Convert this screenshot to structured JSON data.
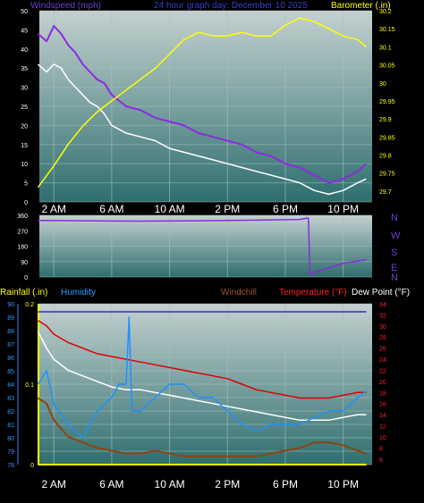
{
  "header": {
    "wind_label": "Windspeed (mph)",
    "subtitle": "24 hour graph day:  December 10 2025",
    "baro_label": "Barometer (.in)"
  },
  "bottom_header": {
    "rain_label": "Rainfall (.in)",
    "humidity_label": "Humidity",
    "windchill_label": "Windchill",
    "temp_label": "Temperature (°F)",
    "dew_label": "Dew Point (°F)"
  },
  "x_ticks": [
    "2 AM",
    "6 AM",
    "10 AM",
    "2 PM",
    "6 PM",
    "10 PM"
  ],
  "direction_labels": [
    "N",
    "W",
    "S",
    "E",
    "N"
  ],
  "colors": {
    "wind": "#8a2be2",
    "gust": "#8a2be2",
    "wind_avg": "#ffffff",
    "barometer": "#ffff00",
    "direction": "#8a2be2",
    "humidity": "#1e90ff",
    "windchill": "#ffffff",
    "temperature": "#dd0000",
    "dewpoint": "#8b4513",
    "rain_total": "#3333aa",
    "rain": "#ffff00"
  },
  "chart_data": [
    {
      "type": "line",
      "title": "24 hour graph day:  December 10 2025",
      "x_unit": "hour of day",
      "xlim": [
        1,
        24
      ],
      "x_ticks": [
        2,
        6,
        10,
        14,
        18,
        22
      ],
      "y_left_label": "Windspeed (mph)",
      "ylim_left": [
        0,
        50
      ],
      "y_left_ticks": [
        0,
        5,
        10,
        15,
        20,
        25,
        30,
        35,
        40,
        45,
        50
      ],
      "y_right_label": "Barometer (.in)",
      "ylim_right": [
        29.67,
        30.2
      ],
      "y_right_ticks": [
        "29.7",
        "29.75",
        "29.8",
        "29.85",
        "29.9",
        "29.95",
        "30",
        "30.05",
        "30.1",
        "30.15",
        "30.2"
      ],
      "series": [
        {
          "role": "gust",
          "axis": "left",
          "x": [
            0.9,
            1.5,
            2.0,
            2.5,
            3.0,
            3.5,
            4.0,
            4.5,
            5.0,
            5.5,
            6.0,
            7.0,
            8.0,
            9.0,
            10.0,
            11.0,
            12.0,
            13.0,
            14.0,
            15.0,
            16.0,
            17.0,
            18.0,
            19.0,
            20.0,
            21.0,
            22.0,
            23.0,
            23.6
          ],
          "values": [
            44,
            42,
            46,
            44,
            41,
            39,
            36,
            34,
            32,
            31,
            28,
            25,
            24,
            22,
            21,
            20,
            18,
            17,
            16,
            15,
            13,
            12,
            10,
            9,
            7,
            5,
            6,
            8,
            10
          ]
        },
        {
          "role": "wind",
          "axis": "left",
          "x": [
            0.9,
            1.5,
            2.0,
            2.5,
            3.0,
            3.5,
            4.0,
            4.5,
            5.0,
            5.5,
            6.0,
            7.0,
            8.0,
            9.0,
            10.0,
            11.0,
            12.0,
            13.0,
            14.0,
            15.0,
            16.0,
            17.0,
            18.0,
            19.0,
            20.0,
            21.0,
            22.0,
            23.0,
            23.6
          ],
          "values": [
            36,
            34,
            36,
            35,
            32,
            30,
            28,
            26,
            25,
            23,
            20,
            18,
            17,
            16,
            14,
            13,
            12,
            11,
            10,
            9,
            8,
            7,
            6,
            5,
            3,
            2,
            3,
            5,
            6
          ]
        },
        {
          "role": "barometer",
          "axis": "right",
          "x": [
            0.9,
            2.0,
            3.0,
            4.0,
            5.0,
            6.0,
            7.0,
            8.0,
            9.0,
            10.0,
            11.0,
            12.0,
            13.0,
            14.0,
            15.0,
            16.0,
            17.0,
            18.0,
            19.0,
            20.0,
            21.0,
            22.0,
            23.0,
            23.6
          ],
          "values": [
            29.71,
            29.77,
            29.83,
            29.88,
            29.92,
            29.95,
            29.98,
            30.01,
            30.04,
            30.08,
            30.12,
            30.14,
            30.13,
            30.13,
            30.14,
            30.13,
            30.13,
            30.16,
            30.18,
            30.17,
            30.15,
            30.13,
            30.12,
            30.1
          ]
        }
      ]
    },
    {
      "type": "line",
      "xlim": [
        1,
        24
      ],
      "ylim": [
        0,
        360
      ],
      "y_ticks": [
        0,
        90,
        180,
        270,
        360
      ],
      "series": [
        {
          "role": "direction",
          "x": [
            0.9,
            4.0,
            8.0,
            12.0,
            16.0,
            19.0,
            19.6,
            19.7,
            20.5,
            22.0,
            23.6
          ],
          "values": [
            330,
            328,
            326,
            328,
            332,
            336,
            345,
            15,
            40,
            80,
            100
          ]
        }
      ]
    },
    {
      "type": "line",
      "xlim": [
        1,
        24
      ],
      "y_humidity_label": "Humidity",
      "ylim_humidity": [
        78,
        90
      ],
      "y_humidity_ticks": [
        78,
        79,
        80,
        81,
        82,
        83,
        84,
        85,
        86,
        87,
        88,
        89,
        90
      ],
      "y_rain_label": "Rainfall (.in)",
      "ylim_rain": [
        0,
        0.2
      ],
      "y_rain_ticks": [
        "0",
        "0.1",
        "0.2"
      ],
      "y_temp_label": "Temperature (°F)",
      "ylim_temp": [
        5,
        34
      ],
      "y_temp_ticks": [
        6,
        8,
        10,
        12,
        14,
        16,
        18,
        20,
        22,
        24,
        26,
        28,
        30,
        32,
        34
      ],
      "series": [
        {
          "role": "rain_total",
          "axis": "rain",
          "x": [
            0.9,
            23.6
          ],
          "values": [
            0.19,
            0.19
          ]
        },
        {
          "role": "rain",
          "axis": "rain",
          "x": [
            0.9,
            23.6
          ],
          "values": [
            0,
            0
          ]
        },
        {
          "role": "temperature",
          "axis": "temp",
          "x": [
            0.9,
            1.5,
            2.0,
            3.0,
            4.0,
            5.0,
            6.0,
            7.0,
            8.0,
            9.0,
            10.0,
            11.0,
            12.0,
            13.0,
            14.0,
            15.0,
            16.0,
            17.0,
            18.0,
            19.0,
            20.0,
            21.0,
            22.0,
            23.0,
            23.6
          ],
          "values": [
            31,
            30,
            28.5,
            27,
            26,
            25,
            24.5,
            24,
            23.5,
            23,
            22.5,
            22,
            21.5,
            21,
            20.5,
            19.5,
            18.5,
            18,
            17.5,
            17,
            17,
            17,
            17.5,
            18,
            18
          ]
        },
        {
          "role": "windchill",
          "axis": "temp",
          "x": [
            0.9,
            1.5,
            2.0,
            3.0,
            4.0,
            5.0,
            6.0,
            7.0,
            8.0,
            9.0,
            10.0,
            11.0,
            12.0,
            13.0,
            14.0,
            15.0,
            16.0,
            17.0,
            18.0,
            19.0,
            20.0,
            21.0,
            22.0,
            23.0,
            23.6
          ],
          "values": [
            29,
            26,
            24,
            22,
            21,
            20,
            19,
            18.5,
            18.5,
            18,
            17.5,
            17,
            16.5,
            16,
            15.5,
            15,
            14.5,
            14,
            13.5,
            13,
            13,
            13,
            13.5,
            14,
            14
          ]
        },
        {
          "role": "humidity",
          "axis": "humidity",
          "x": [
            0.9,
            1.5,
            2.0,
            3.0,
            4.0,
            5.0,
            6.0,
            6.5,
            7.0,
            7.2,
            7.4,
            8.0,
            9.0,
            10.0,
            11.0,
            12.0,
            13.0,
            14.0,
            15.0,
            16.0,
            17.0,
            18.0,
            19.0,
            20.0,
            21.0,
            22.0,
            23.0,
            23.6
          ],
          "values": [
            84,
            85,
            82.5,
            81,
            80,
            82,
            83,
            84,
            84,
            89,
            82,
            82,
            83,
            84,
            84,
            83,
            83,
            82,
            81,
            80.5,
            81,
            81,
            81,
            81.5,
            82,
            82,
            83,
            83.5
          ]
        },
        {
          "role": "dewpoint",
          "axis": "temp",
          "x": [
            0.9,
            1.5,
            2.0,
            3.0,
            4.0,
            5.0,
            6.0,
            7.0,
            8.0,
            9.0,
            10.0,
            11.0,
            12.0,
            13.0,
            14.0,
            15.0,
            16.0,
            17.0,
            18.0,
            19.0,
            20.0,
            21.0,
            22.0,
            23.0,
            23.6
          ],
          "values": [
            17,
            16,
            13,
            10,
            9,
            8,
            7.5,
            7,
            7,
            7.5,
            7,
            6.5,
            6.5,
            6.5,
            6.5,
            6.5,
            6.5,
            7,
            7.5,
            8,
            9,
            9,
            8.5,
            7.5,
            7
          ]
        }
      ]
    }
  ]
}
